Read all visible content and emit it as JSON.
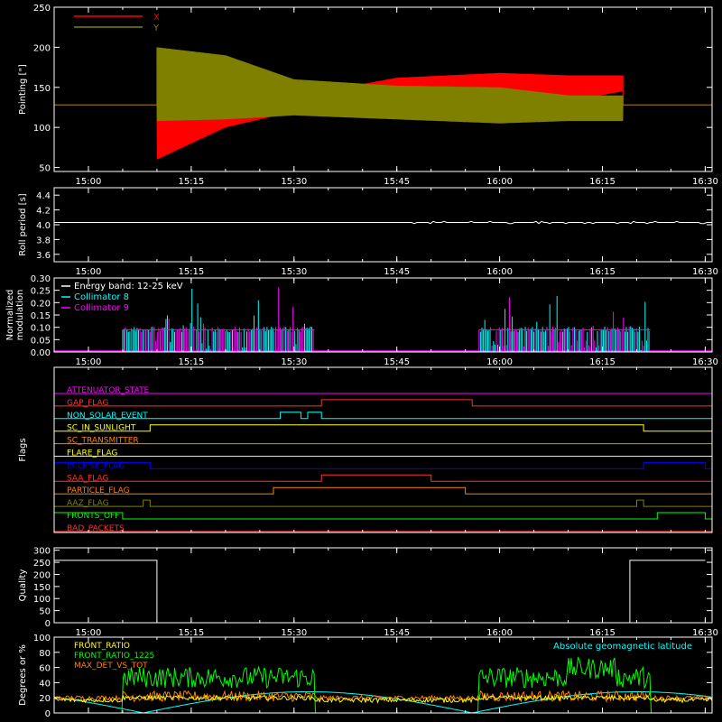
{
  "chart_data": [
    {
      "type": "line",
      "ylabel": "Pointing [\"]",
      "ylim": [
        45,
        250
      ],
      "yticks": [
        50,
        100,
        150,
        200,
        250
      ],
      "xticks": [
        "15:00",
        "15:15",
        "15:30",
        "15:45",
        "16:00",
        "16:15",
        "16:30"
      ],
      "legend_position": "top-left",
      "series": [
        {
          "name": "X",
          "color": "#ff0000",
          "baseline": 128,
          "envelope_time": [
            "15:10",
            "15:20",
            "15:30",
            "15:45",
            "16:00",
            "16:10",
            "16:18"
          ],
          "low": [
            60,
            100,
            120,
            128,
            128,
            133,
            145
          ],
          "high": [
            130,
            130,
            138,
            162,
            168,
            165,
            165
          ]
        },
        {
          "name": "Y",
          "color": "#808000",
          "baseline": 128,
          "envelope_time": [
            "15:10",
            "15:20",
            "15:30",
            "15:45",
            "16:00",
            "16:10",
            "16:18"
          ],
          "low": [
            108,
            110,
            115,
            110,
            105,
            108,
            108
          ],
          "high": [
            200,
            190,
            160,
            152,
            150,
            140,
            140
          ]
        }
      ]
    },
    {
      "type": "line",
      "ylabel": "Roll period [s]",
      "ylim": [
        3.5,
        4.5
      ],
      "yticks": [
        "3.6",
        "3.8",
        "4.0",
        "4.2",
        "4.4"
      ],
      "xticks": [
        "15:00",
        "15:15",
        "15:30",
        "15:45",
        "16:00",
        "16:15",
        "16:30"
      ],
      "series": [
        {
          "name": "",
          "color": "#ffffff",
          "value": 4.03
        }
      ]
    },
    {
      "type": "bar",
      "ylabel": "Normalized modulation",
      "ylim": [
        0,
        0.3
      ],
      "yticks": [
        "0.00",
        "0.05",
        "0.10",
        "0.15",
        "0.20",
        "0.25",
        "0.30"
      ],
      "xticks": [
        "15:00",
        "15:15",
        "15:30",
        "15:45",
        "16:00",
        "16:15",
        "16:30"
      ],
      "legend": [
        "Energy band: 12-25 keV",
        "Collimator 8",
        "Collimator 9"
      ],
      "legend_colors": [
        "#ffffff",
        "#00ffff",
        "#ff00ff"
      ],
      "active_intervals": [
        [
          "15:05",
          "15:33"
        ],
        [
          "15:57",
          "16:22"
        ]
      ],
      "baseline_level": 0.09,
      "peak_level": 0.27
    },
    {
      "type": "line",
      "ylabel": "Flags",
      "flags": [
        {
          "name": "ATTENUATOR_STATE",
          "color": "#ff00ff",
          "on": []
        },
        {
          "name": "GAP_FLAG",
          "color": "#ff3030",
          "on": [
            [
              "15:34",
              "15:56"
            ]
          ]
        },
        {
          "name": "NON_SOLAR_EVENT",
          "color": "#00ffff",
          "on": [
            [
              "15:28",
              "15:31"
            ],
            [
              "15:32",
              "15:34"
            ]
          ]
        },
        {
          "name": "SC_IN_SUNLIGHT",
          "color": "#ffff00",
          "on": [
            [
              "15:09",
              "16:21"
            ]
          ]
        },
        {
          "name": "SC_TRANSMITTER",
          "color": "#ff8000",
          "on": []
        },
        {
          "name": "FLARE_FLAG",
          "color": "#ffff00",
          "on": []
        },
        {
          "name": "ECLIPSE_FLAG",
          "color": "#0000ff",
          "on": [
            [
              "14:55",
              "15:09"
            ],
            [
              "16:21",
              "16:30"
            ]
          ]
        },
        {
          "name": "SAA_FLAG",
          "color": "#ff3030",
          "on": [
            [
              "15:34",
              "15:50"
            ]
          ]
        },
        {
          "name": "PARTICLE_FLAG",
          "color": "#ff8000",
          "on": [
            [
              "15:27",
              "15:55"
            ]
          ]
        },
        {
          "name": "AAZ_FLAG",
          "color": "#808000",
          "on": [
            [
              "15:08",
              "15:09"
            ],
            [
              "16:20",
              "16:21"
            ]
          ]
        },
        {
          "name": "FRONTS_OFF",
          "color": "#00ff00",
          "on": [
            [
              "14:55",
              "15:05"
            ],
            [
              "16:23",
              "16:30"
            ]
          ]
        },
        {
          "name": "BAD_PACKETS",
          "color": "#ff3030",
          "on": []
        }
      ]
    },
    {
      "type": "line",
      "ylabel": "Quality",
      "ylim": [
        0,
        310
      ],
      "yticks": [
        0,
        50,
        100,
        150,
        200,
        250,
        300
      ],
      "xticks": [
        "15:00",
        "15:15",
        "15:30",
        "15:45",
        "16:00",
        "16:15",
        "16:30"
      ],
      "series": [
        {
          "name": "",
          "color": "#ffffff",
          "points": [
            [
              "14:55",
              258
            ],
            [
              "15:10",
              258
            ],
            [
              "15:10",
              0
            ],
            [
              "16:19",
              0
            ],
            [
              "16:19",
              258
            ],
            [
              "16:30",
              258
            ]
          ]
        }
      ]
    },
    {
      "type": "line",
      "ylabel": "Degrees or %",
      "ylim": [
        0,
        100
      ],
      "yticks": [
        0,
        20,
        40,
        60,
        80,
        100
      ],
      "annotation": "Absolute geomagnetic latitude",
      "annotation_color": "#00ffff",
      "legend": [
        "FRONT_RATIO",
        "FRONT_RATIO_1225",
        "MAX_DET_VS_TOT"
      ],
      "legend_colors": [
        "#ffff00",
        "#00ff00",
        "#ff8000"
      ],
      "active_intervals": [
        [
          "15:05",
          "15:33"
        ],
        [
          "15:57",
          "16:22"
        ]
      ],
      "levels": {
        "green": 47,
        "orange": 22,
        "yellow": 20,
        "latitude_peak": 28
      }
    }
  ]
}
